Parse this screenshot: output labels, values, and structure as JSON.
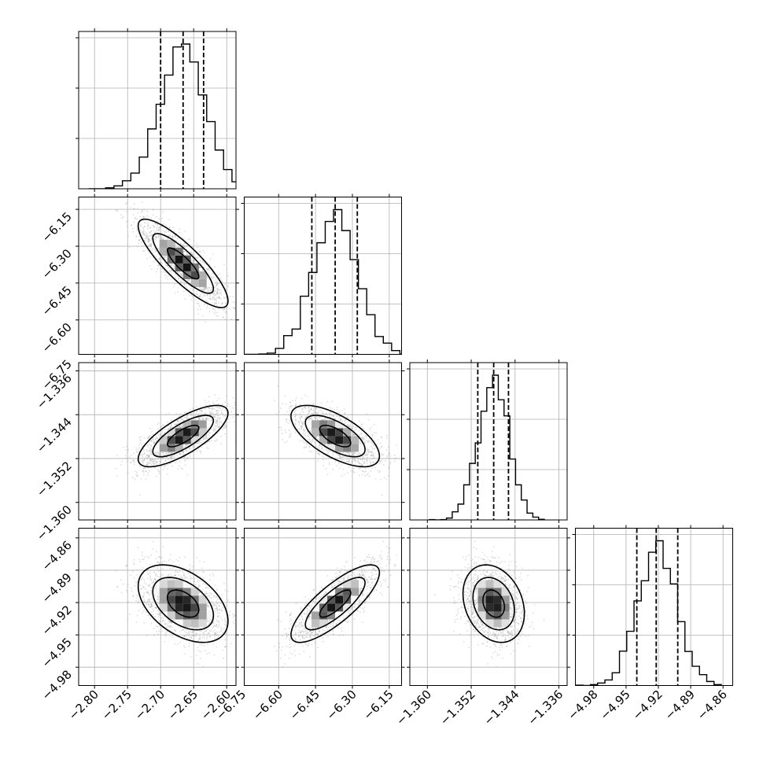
{
  "chart_data": {
    "type": "corner",
    "grid": true,
    "parameters": [
      {
        "ticks": [
          -2.8,
          -2.75,
          -2.7,
          -2.65,
          -2.6
        ],
        "tick_labels": [
          "−2.80",
          "−2.75",
          "−2.70",
          "−2.65",
          "−2.60"
        ],
        "range": [
          -2.824,
          -2.586
        ],
        "quantiles": [
          -2.7,
          -2.666,
          -2.635
        ],
        "mean": -2.666,
        "sd": 0.034
      },
      {
        "ticks": [
          -6.75,
          -6.6,
          -6.45,
          -6.3,
          -6.15
        ],
        "tick_labels": [
          "−6.75",
          "−6.60",
          "−6.45",
          "−6.30",
          "−6.15"
        ],
        "range": [
          -6.74,
          -6.1
        ],
        "quantiles": [
          -6.465,
          -6.37,
          -6.28
        ],
        "mean": -6.37,
        "sd": 0.09
      },
      {
        "ticks": [
          -1.36,
          -1.352,
          -1.344,
          -1.336
        ],
        "tick_labels": [
          "−1.360",
          "−1.352",
          "−1.344",
          "−1.336"
        ],
        "range": [
          -1.3632,
          -1.3345
        ],
        "quantiles": [
          -1.3508,
          -1.3479,
          -1.3452
        ],
        "mean": -1.3479,
        "sd": 0.0028
      },
      {
        "ticks": [
          -4.98,
          -4.95,
          -4.92,
          -4.89,
          -4.86
        ],
        "tick_labels": [
          "−4.98",
          "−4.95",
          "−4.92",
          "−4.89",
          "−4.86"
        ],
        "range": [
          -4.997,
          -4.851
        ],
        "quantiles": [
          -4.94,
          -4.922,
          -4.902
        ],
        "mean": -4.921,
        "sd": 0.018
      }
    ],
    "correlations": [
      [
        1,
        -0.85,
        0.75,
        -0.45
      ],
      [
        -0.85,
        1,
        -0.65,
        0.8
      ],
      [
        0.75,
        -0.65,
        1,
        -0.25
      ],
      [
        -0.45,
        0.8,
        -0.25,
        1
      ]
    ],
    "colors": {
      "hist": "#000000",
      "contour": "#000000",
      "points": "#9a9a9a",
      "grid": "#b0b0b0"
    }
  }
}
